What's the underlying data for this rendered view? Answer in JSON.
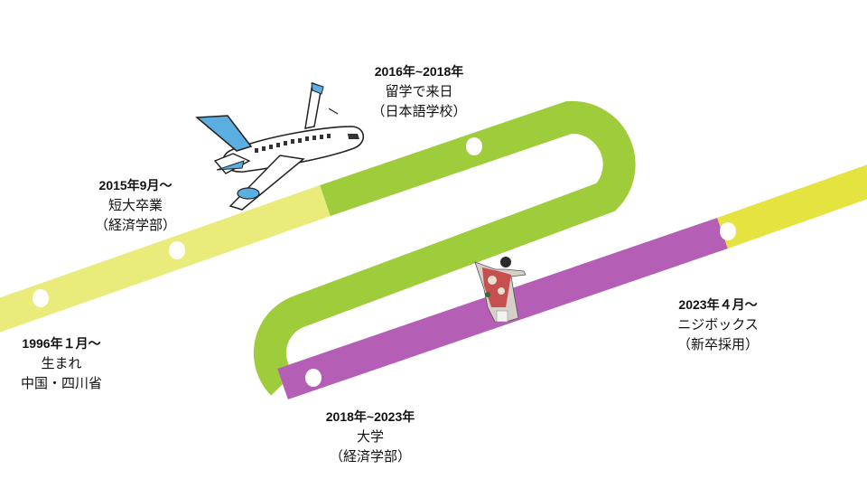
{
  "timeline": [
    {
      "date": "1996年１月～",
      "line1": "生まれ",
      "line2": "中国・四川省"
    },
    {
      "date": "2015年9月～",
      "line1": "短大卒業",
      "line2": "（経済学部）"
    },
    {
      "date": "2016年~2018年",
      "line1": "留学で来日",
      "line2": "（日本語学校）"
    },
    {
      "date": "2018年~2023年",
      "line1": "大学",
      "line2": "（経済学部）"
    },
    {
      "date": "2023年４月～",
      "line1": "ニジボックス",
      "line2": "（新卒採用）"
    }
  ],
  "colors": {
    "segment_pale_yellow": "#e9ec7a",
    "segment_green": "#9fcc3b",
    "segment_purple": "#b45fb5",
    "segment_yellow": "#e5e340",
    "marker": "#ffffff"
  },
  "icons": [
    "airplane-icon",
    "dancer-figure-icon"
  ]
}
